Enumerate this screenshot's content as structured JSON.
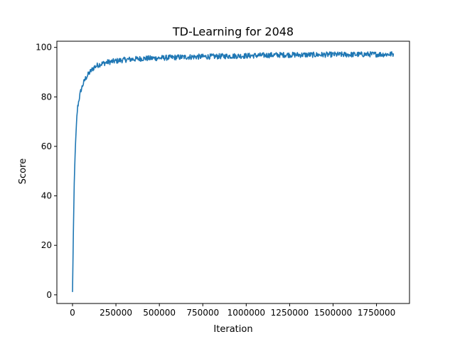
{
  "chart_data": {
    "type": "line",
    "title": "TD-Learning for 2048",
    "xlabel": "Iteration",
    "ylabel": "Score",
    "xlim": [
      -90000,
      1940000
    ],
    "ylim": [
      -3.5,
      102.5
    ],
    "x_ticks": [
      0,
      250000,
      500000,
      750000,
      1000000,
      1250000,
      1500000,
      1750000
    ],
    "x_tick_labels": [
      "0",
      "250000",
      "500000",
      "750000",
      "1000000",
      "1250000",
      "1500000",
      "1750000"
    ],
    "y_ticks": [
      0,
      20,
      40,
      60,
      80,
      100
    ],
    "y_tick_labels": [
      "0",
      "20",
      "40",
      "60",
      "80",
      "100"
    ],
    "grid": false,
    "legend": "none",
    "series": [
      {
        "color": "#1f77b4",
        "x": [
          0,
          5000,
          10000,
          15000,
          20000,
          25000,
          30000,
          40000,
          50000,
          60000,
          75000,
          100000,
          125000,
          150000,
          200000,
          250000,
          300000,
          400000,
          500000,
          600000,
          700000,
          800000,
          900000,
          1000000,
          1100000,
          1200000,
          1300000,
          1400000,
          1500000,
          1600000,
          1700000,
          1800000,
          1850000
        ],
        "y": [
          1,
          25,
          45,
          57,
          65,
          72,
          76,
          80,
          83,
          85,
          87.5,
          90,
          92,
          93,
          94,
          94.5,
          95,
          95.5,
          95.7,
          96,
          96.2,
          96.3,
          96.5,
          96.6,
          96.8,
          97,
          97,
          97,
          97.1,
          97.1,
          97.2,
          97.2,
          97.3
        ]
      }
    ]
  }
}
